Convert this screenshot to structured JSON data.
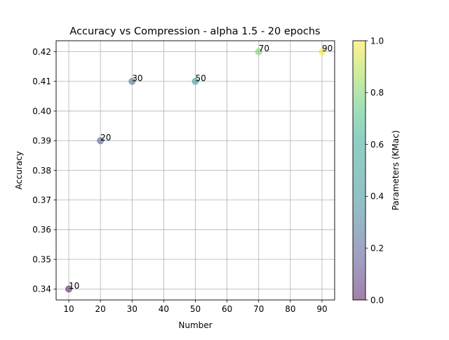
{
  "chart_data": {
    "type": "scatter",
    "title": "Accuracy vs Compression - alpha 1.5 - 20 epochs",
    "xlabel": "Number",
    "ylabel": "Accuracy",
    "colorbar_label": "Parameters (KMac)",
    "xlim": [
      6,
      94
    ],
    "ylim": [
      0.3363,
      0.4237
    ],
    "x_ticks": [
      10,
      20,
      30,
      40,
      50,
      60,
      70,
      80,
      90
    ],
    "y_ticks": [
      0.34,
      0.35,
      0.36,
      0.37,
      0.38,
      0.39,
      0.4,
      0.41,
      0.42
    ],
    "y_tick_labels": [
      "0.34",
      "0.35",
      "0.36",
      "0.37",
      "0.38",
      "0.39",
      "0.40",
      "0.41",
      "0.42"
    ],
    "colorbar_ticks": [
      0.0,
      0.2,
      0.4,
      0.6,
      0.8,
      1.0
    ],
    "colorbar_tick_labels": [
      "0.0",
      "0.2",
      "0.4",
      "0.6",
      "0.8",
      "1.0"
    ],
    "grid": true,
    "colormap": "viridis",
    "marker_alpha": 0.5,
    "points": [
      {
        "x": 10,
        "y": 0.34,
        "label": "10",
        "color_value": 0.0
      },
      {
        "x": 20,
        "y": 0.39,
        "label": "20",
        "color_value": 0.2
      },
      {
        "x": 30,
        "y": 0.41,
        "label": "30",
        "color_value": 0.3
      },
      {
        "x": 50,
        "y": 0.41,
        "label": "50",
        "color_value": 0.5
      },
      {
        "x": 70,
        "y": 0.42,
        "label": "70",
        "color_value": 0.8
      },
      {
        "x": 90,
        "y": 0.42,
        "label": "90",
        "color_value": 1.0
      }
    ]
  }
}
